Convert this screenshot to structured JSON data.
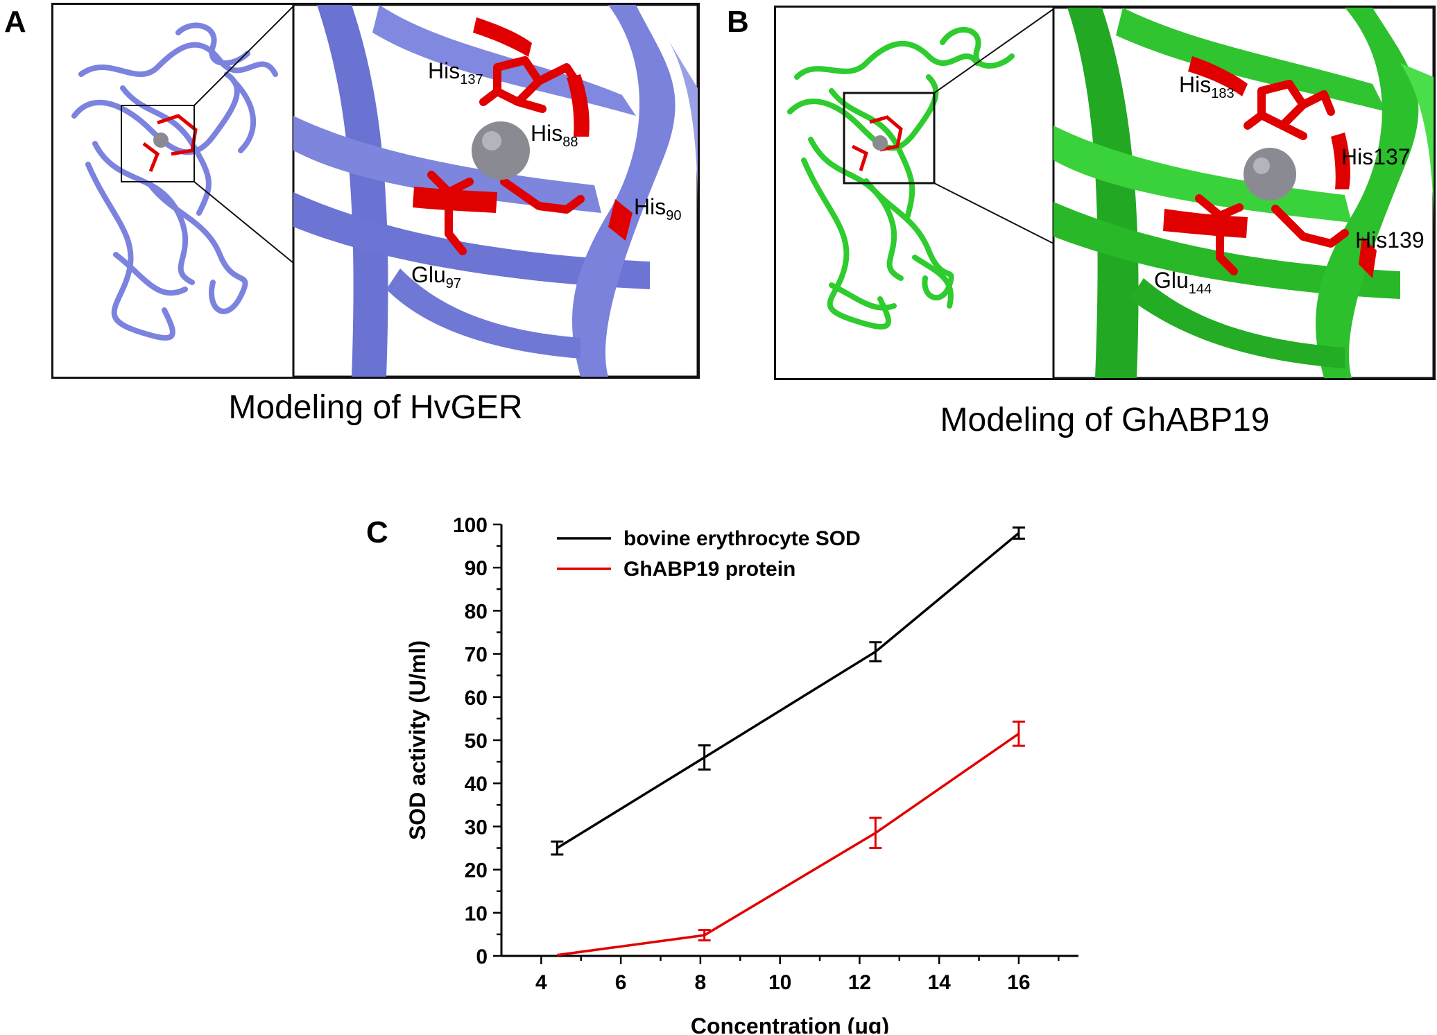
{
  "panels": {
    "a": {
      "letter": "A",
      "title": "Modeling of HvGER",
      "ribbon_color": "#7b83df",
      "residues": [
        {
          "name": "His",
          "sub": "137"
        },
        {
          "name": "His",
          "sub": "88"
        },
        {
          "name": "His",
          "sub": "90"
        },
        {
          "name": "Glu",
          "sub": "97"
        }
      ]
    },
    "b": {
      "letter": "B",
      "title": "Modeling of GhABP19",
      "ribbon_color": "#2ecc2e",
      "residues": [
        {
          "name": "His",
          "sub": "183"
        },
        {
          "name": "His137",
          "sub": ""
        },
        {
          "name": "His139",
          "sub": ""
        },
        {
          "name": "Glu",
          "sub": "144"
        }
      ]
    },
    "c": {
      "letter": "C"
    }
  },
  "colors": {
    "active_site": "#e00000",
    "metal": "#8a8a92"
  },
  "chart_data": {
    "type": "line",
    "xlabel": "Concentration (μg)",
    "ylabel": "SOD activity (U/ml)",
    "xlim": [
      3,
      17.5
    ],
    "ylim": [
      0,
      100
    ],
    "xticks": [
      4,
      6,
      8,
      10,
      12,
      14,
      16
    ],
    "yticks": [
      0,
      10,
      20,
      30,
      40,
      50,
      60,
      70,
      80,
      90,
      100
    ],
    "legend_position": "top-left",
    "grid": false,
    "series": [
      {
        "name": "bovine erythrocyte SOD",
        "color": "#000000",
        "x": [
          4.4,
          8.1,
          12.4,
          16.0
        ],
        "y": [
          25,
          46,
          70.5,
          98
        ],
        "err": [
          1.5,
          2.8,
          2.2,
          1.3
        ]
      },
      {
        "name": "GhABP19 protein",
        "color": "#e00000",
        "x": [
          4.4,
          8.1,
          12.4,
          16.0
        ],
        "y": [
          0.2,
          4.8,
          28.5,
          51.5
        ],
        "err": [
          0,
          1.2,
          3.5,
          2.8
        ]
      }
    ]
  }
}
